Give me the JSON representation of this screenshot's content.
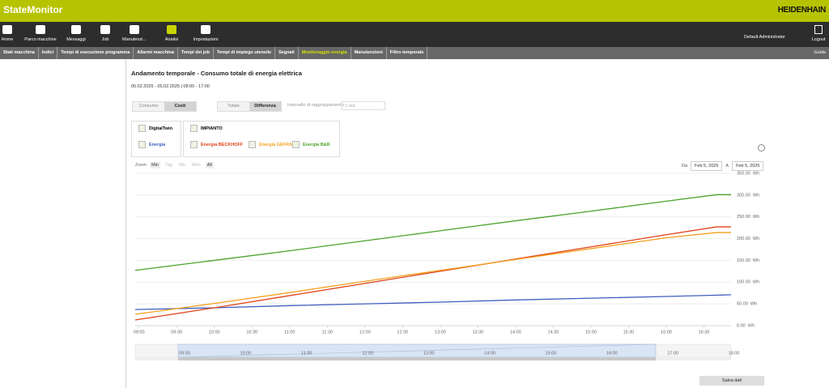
{
  "header": {
    "app_title": "StateMonitor",
    "brand": "HEIDENHAIN"
  },
  "toolbar": {
    "items": [
      "Home",
      "Parco macchine",
      "Messaggi",
      "Job",
      "Manutenzi...",
      "Analisi",
      "Impostazioni"
    ],
    "user": "Default Administrator",
    "logout": "Logout"
  },
  "tabs": [
    "Stati macchina",
    "Indici",
    "Tempi di esecuzione programma",
    "Allarmi macchina",
    "Tempi dei job",
    "Tempi di impiego utensile",
    "Segnali",
    "Monitoraggio energia",
    "Manutenzioni",
    "Filtro temporale"
  ],
  "help": "Guida",
  "report": {
    "title": "Andamento temporale - Consumo totale di energia elettrica",
    "date_range": "05.02.2025 - 05.02.2025 | 08:00 - 17:00"
  },
  "toggles": {
    "mode": [
      "Consumo",
      "Costi"
    ],
    "view": [
      "Totale",
      "Differenza"
    ],
    "grouping_label": "Intervallo di raggruppamento",
    "grouping_value": "1 ora"
  },
  "groups": [
    "DigitalTwin",
    "IMPIANTO"
  ],
  "zoom": {
    "label": "Zoom",
    "options": [
      "Min",
      "Tag",
      "Wo",
      "Mon",
      "All"
    ]
  },
  "range": {
    "from_label": "Da",
    "from": "Feb 5, 2025",
    "to_label": "A",
    "to": "Feb 5, 2025"
  },
  "navigator_labels": [
    "09:00",
    "10:00",
    "11:00",
    "12:00",
    "13:00",
    "14:00",
    "15:00",
    "16:00",
    "17:00",
    "18:00"
  ],
  "save_button": "Salva dati",
  "chart_data": {
    "type": "line",
    "x": [
      8.95,
      10,
      11,
      12,
      13,
      14,
      15,
      16,
      16.67,
      16.86
    ],
    "series": [
      {
        "name": "Energia",
        "color": "#3f5fbf",
        "values": [
          37,
          41,
          46,
          50,
          54,
          59,
          63,
          67,
          70,
          71
        ]
      },
      {
        "name": "Energia BECKHOFF",
        "color": "#e0431b",
        "values": [
          13,
          41,
          69,
          97,
          125,
          153,
          181,
          209,
          227,
          227
        ]
      },
      {
        "name": "Energia GEFRAN",
        "color": "#f4a11f",
        "values": [
          26,
          51,
          76,
          102,
          127,
          152,
          177,
          202,
          214,
          214
        ]
      },
      {
        "name": "Energia B&R",
        "color": "#4ba22b",
        "values": [
          127,
          150,
          172,
          195,
          218,
          241,
          263,
          286,
          301,
          301
        ]
      }
    ],
    "xlim": [
      8.95,
      16.86
    ],
    "xticks": [
      {
        "value": 9,
        "label": "09:00"
      },
      {
        "value": 9.5,
        "label": "09:30"
      },
      {
        "value": 10,
        "label": "10:00"
      },
      {
        "value": 10.5,
        "label": "10:30"
      },
      {
        "value": 11,
        "label": "11:00"
      },
      {
        "value": 11.5,
        "label": "11:30"
      },
      {
        "value": 12,
        "label": "12:00"
      },
      {
        "value": 12.5,
        "label": "12:30"
      },
      {
        "value": 13,
        "label": "13:00"
      },
      {
        "value": 13.5,
        "label": "13:30"
      },
      {
        "value": 14,
        "label": "14:00"
      },
      {
        "value": 14.5,
        "label": "14:30"
      },
      {
        "value": 15,
        "label": "15:00"
      },
      {
        "value": 15.5,
        "label": "15:30"
      },
      {
        "value": 16,
        "label": "16:00"
      },
      {
        "value": 16.5,
        "label": "16:30"
      }
    ],
    "ylim": [
      0,
      350
    ],
    "yticks": [
      {
        "value": 0,
        "label": "0.00  Wh"
      },
      {
        "value": 50,
        "label": "50.00  Wh"
      },
      {
        "value": 100,
        "label": "100.00  Wh"
      },
      {
        "value": 150,
        "label": "150.00  Wh"
      },
      {
        "value": 200,
        "label": "200.00  Wh"
      },
      {
        "value": 250,
        "label": "250.00  Wh"
      },
      {
        "value": 300,
        "label": "300.00  Wh"
      },
      {
        "value": 350,
        "label": "350.00  Wh"
      }
    ],
    "grid": true
  }
}
